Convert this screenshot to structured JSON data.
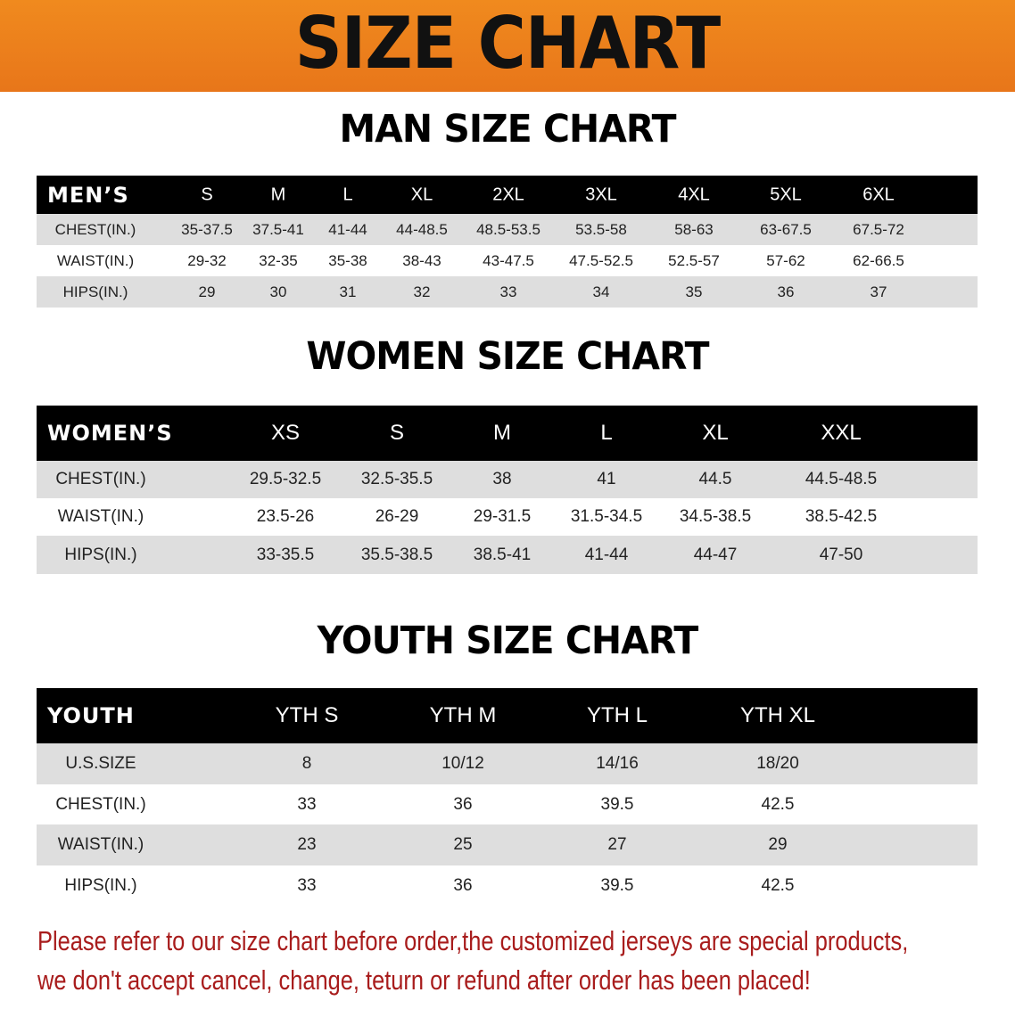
{
  "banner": {
    "title": "SIZE CHART",
    "color": "#e8761a"
  },
  "men": {
    "title": "MAN SIZE CHART",
    "header": "MEN’S",
    "sizes": [
      "S",
      "M",
      "L",
      "XL",
      "2XL",
      "3XL",
      "4XL",
      "5XL",
      "6XL"
    ],
    "rows": [
      {
        "label": "CHEST(IN.)",
        "values": [
          "35-37.5",
          "37.5-41",
          "41-44",
          "44-48.5",
          "48.5-53.5",
          "53.5-58",
          "58-63",
          "63-67.5",
          "67.5-72"
        ]
      },
      {
        "label": "WAIST(IN.)",
        "values": [
          "29-32",
          "32-35",
          "35-38",
          "38-43",
          "43-47.5",
          "47.5-52.5",
          "52.5-57",
          "57-62",
          "62-66.5"
        ]
      },
      {
        "label": "HIPS(IN.)",
        "values": [
          "29",
          "30",
          "31",
          "32",
          "33",
          "34",
          "35",
          "36",
          "37"
        ]
      }
    ]
  },
  "women": {
    "title": "WOMEN SIZE CHART",
    "header": "WOMEN’S",
    "sizes": [
      "XS",
      "S",
      "M",
      "L",
      "XL",
      "XXL"
    ],
    "rows": [
      {
        "label": "CHEST(IN.)",
        "values": [
          "29.5-32.5",
          "32.5-35.5",
          "38",
          "41",
          "44.5",
          "44.5-48.5"
        ]
      },
      {
        "label": "WAIST(IN.)",
        "values": [
          "23.5-26",
          "26-29",
          "29-31.5",
          "31.5-34.5",
          "34.5-38.5",
          "38.5-42.5"
        ]
      },
      {
        "label": "HIPS(IN.)",
        "values": [
          "33-35.5",
          "35.5-38.5",
          "38.5-41",
          "41-44",
          "44-47",
          "47-50"
        ]
      }
    ]
  },
  "youth": {
    "title": "YOUTH SIZE CHART",
    "header": "YOUTH",
    "sizes": [
      "YTH S",
      "YTH M",
      "YTH L",
      "YTH XL"
    ],
    "rows": [
      {
        "label": "U.S.SIZE",
        "values": [
          "8",
          "10/12",
          "14/16",
          "18/20"
        ]
      },
      {
        "label": "CHEST(IN.)",
        "values": [
          "33",
          "36",
          "39.5",
          "42.5"
        ]
      },
      {
        "label": "WAIST(IN.)",
        "values": [
          "23",
          "25",
          "27",
          "29"
        ]
      },
      {
        "label": "HIPS(IN.)",
        "values": [
          "33",
          "36",
          "39.5",
          "42.5"
        ]
      }
    ]
  },
  "note": {
    "line1": "Please refer to our size chart before order,the customized jerseys are special products,",
    "line2": "we don't accept cancel, change, teturn or refund after order has been placed!",
    "color": "#a81c1c"
  }
}
